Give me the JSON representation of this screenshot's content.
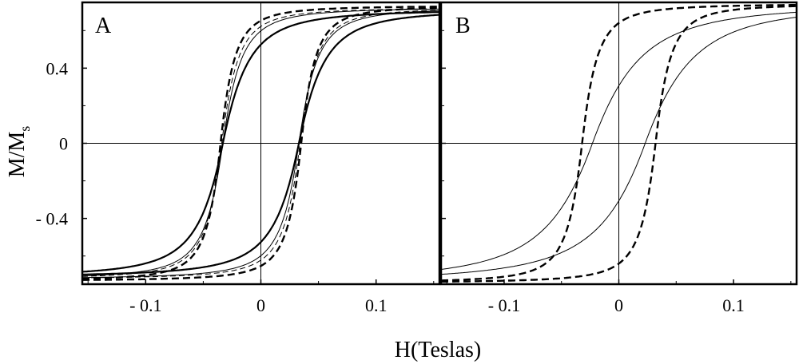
{
  "xlabel": "H(Teslas)",
  "ylabel": {
    "main": "M/M",
    "sub": "s"
  },
  "chart_data": [
    {
      "type": "line",
      "panel_label": "A",
      "xlabel": "H(Teslas)",
      "ylabel": "M/Ms",
      "xlim": [
        -0.155,
        0.155
      ],
      "ylim": [
        -0.75,
        0.75
      ],
      "x_ticks": [
        {
          "value": -0.1,
          "label": "- 0.1"
        },
        {
          "value": 0,
          "label": "0"
        },
        {
          "value": 0.1,
          "label": "0.1"
        }
      ],
      "y_ticks": [
        {
          "value": 0.4,
          "label": "0.4"
        },
        {
          "value": 0,
          "label": "0"
        },
        {
          "value": -0.4,
          "label": "- 0.4"
        }
      ],
      "grid": false,
      "zero_lines": true,
      "series": [
        {
          "style": "solid-thick",
          "coercive_field": 0.033,
          "remanence": 0.43,
          "saturation": 0.72,
          "sharpness": 0.024
        },
        {
          "style": "solid-thin",
          "coercive_field": 0.033,
          "remanence": 0.5,
          "saturation": 0.73,
          "sharpness": 0.017
        },
        {
          "style": "dashed-thin",
          "coercive_field": 0.034,
          "remanence": 0.53,
          "saturation": 0.73,
          "sharpness": 0.015
        },
        {
          "style": "dashed-thick",
          "coercive_field": 0.035,
          "remanence": 0.57,
          "saturation": 0.74,
          "sharpness": 0.013
        }
      ]
    },
    {
      "type": "line",
      "panel_label": "B",
      "xlabel": "H(Teslas)",
      "ylabel": "M/Ms",
      "xlim": [
        -0.155,
        0.155
      ],
      "ylim": [
        -0.75,
        0.75
      ],
      "x_ticks": [
        {
          "value": -0.1,
          "label": "- 0.1"
        },
        {
          "value": 0,
          "label": "0"
        },
        {
          "value": 0.1,
          "label": "0.1"
        }
      ],
      "y_ticks": [
        {
          "value": 0.4,
          "label": ""
        },
        {
          "value": 0,
          "label": ""
        },
        {
          "value": -0.4,
          "label": ""
        }
      ],
      "grid": false,
      "zero_lines": true,
      "series": [
        {
          "style": "solid-thin",
          "coercive_field": 0.023,
          "remanence": 0.3,
          "saturation": 0.75,
          "sharpness": 0.045
        },
        {
          "style": "dashed-thick",
          "coercive_field": 0.032,
          "remanence": 0.57,
          "saturation": 0.75,
          "sharpness": 0.014
        }
      ]
    }
  ]
}
